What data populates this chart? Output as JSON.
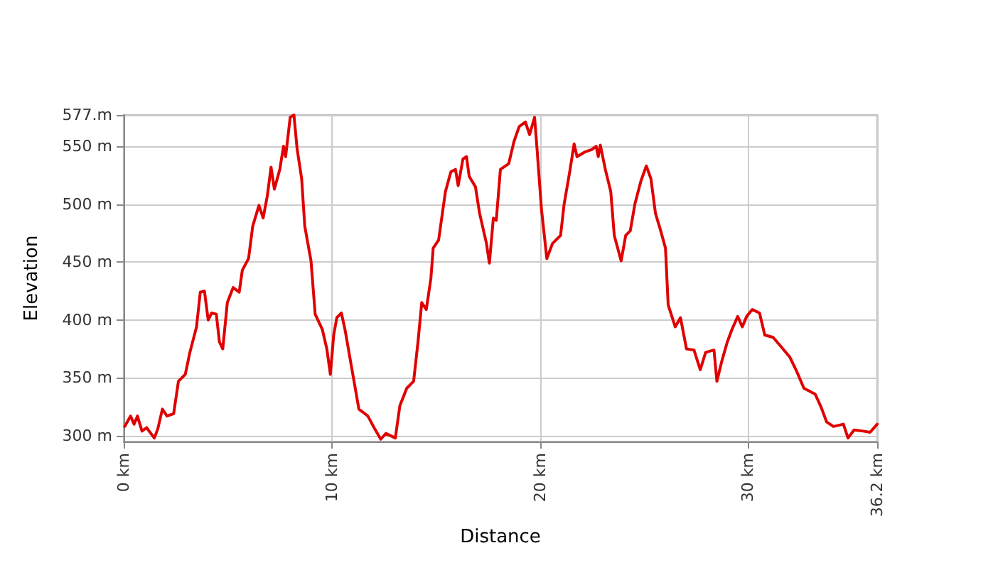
{
  "chart_data": {
    "type": "line",
    "xlabel": "Distance",
    "ylabel": "Elevation",
    "x": [
      0.05,
      0.33,
      0.5,
      0.66,
      0.88,
      1.1,
      1.47,
      1.64,
      1.86,
      2.08,
      2.4,
      2.63,
      2.96,
      3.18,
      3.5,
      3.68,
      3.88,
      4.06,
      4.23,
      4.45,
      4.6,
      4.76,
      4.98,
      5.26,
      5.55,
      5.7,
      6.0,
      6.2,
      6.5,
      6.7,
      6.9,
      7.08,
      7.24,
      7.5,
      7.68,
      7.78,
      8.0,
      8.18,
      8.33,
      8.55,
      8.7,
      9.0,
      9.2,
      9.54,
      9.76,
      9.93,
      10.09,
      10.24,
      10.46,
      10.64,
      10.97,
      11.3,
      11.73,
      12.06,
      12.35,
      12.6,
      13.05,
      13.27,
      13.6,
      13.93,
      14.14,
      14.32,
      14.54,
      14.76,
      14.87,
      15.13,
      15.46,
      15.72,
      15.94,
      16.07,
      16.3,
      16.47,
      16.6,
      16.9,
      17.1,
      17.43,
      17.57,
      17.76,
      17.9,
      18.1,
      18.5,
      18.75,
      19.0,
      19.3,
      19.5,
      19.74,
      19.85,
      20.07,
      20.33,
      20.6,
      20.99,
      21.16,
      21.43,
      21.64,
      21.78,
      22.15,
      22.48,
      22.7,
      22.8,
      22.9,
      23.14,
      23.4,
      23.57,
      23.9,
      24.12,
      24.34,
      24.56,
      24.85,
      25.11,
      25.33,
      25.55,
      25.8,
      26.03,
      26.16,
      26.5,
      26.75,
      27.04,
      27.4,
      27.7,
      27.96,
      28.36,
      28.5,
      28.73,
      29.0,
      29.23,
      29.5,
      29.72,
      29.93,
      30.2,
      30.55,
      30.8,
      31.2,
      31.58,
      32.0,
      32.35,
      32.68,
      33.22,
      33.5,
      33.77,
      34.1,
      34.58,
      34.8,
      35.09,
      35.53,
      35.86,
      36.2
    ],
    "series": [
      {
        "color": "#e00000",
        "values": [
          308,
          317,
          310,
          317,
          304,
          307,
          298,
          306,
          323,
          317,
          319,
          347,
          353,
          372,
          394,
          424,
          425,
          400,
          406,
          405,
          381,
          375,
          415,
          428,
          424,
          443,
          453,
          481,
          499,
          488,
          507,
          532,
          513,
          530,
          550,
          541,
          575,
          577,
          548,
          522,
          481,
          451,
          405,
          392,
          375,
          353,
          387,
          402,
          406,
          391,
          357,
          323,
          317,
          306,
          297,
          302,
          298,
          326,
          341,
          347,
          381,
          415,
          409,
          436,
          462,
          469,
          511,
          528,
          530,
          516,
          539,
          541,
          524,
          515,
          492,
          466,
          449,
          488,
          486,
          530,
          535,
          554,
          567,
          571,
          560,
          575,
          550,
          496,
          453,
          466,
          473,
          500,
          528,
          552,
          541,
          545,
          547,
          550,
          541,
          551,
          530,
          511,
          473,
          451,
          473,
          477,
          500,
          520,
          533,
          522,
          492,
          477,
          462,
          413,
          394,
          402,
          375,
          374,
          357,
          372,
          374,
          347,
          364,
          381,
          392,
          403,
          394,
          403,
          409,
          406,
          387,
          385,
          377,
          368,
          355,
          341,
          336,
          325,
          312,
          308,
          310,
          298,
          305,
          304,
          303,
          310
        ]
      }
    ],
    "xlim": [
      0,
      36.2
    ],
    "xticks": [
      {
        "value": 0,
        "label": "0 km"
      },
      {
        "value": 10,
        "label": "10 km"
      },
      {
        "value": 20,
        "label": "20 km"
      },
      {
        "value": 30,
        "label": "30 km"
      },
      {
        "value": 36.2,
        "label": "36.2 km"
      }
    ],
    "ylim": [
      295,
      577
    ],
    "yticks": [
      {
        "value": 300,
        "label": "300 m"
      },
      {
        "value": 350,
        "label": "350 m"
      },
      {
        "value": 400,
        "label": "400 m"
      },
      {
        "value": 450,
        "label": "450 m"
      },
      {
        "value": 500,
        "label": "500 m"
      },
      {
        "value": 550,
        "label": "550 m"
      },
      {
        "value": 577,
        "label": "577.m"
      }
    ],
    "grid": true,
    "marker": "none",
    "line_style": "solid"
  }
}
